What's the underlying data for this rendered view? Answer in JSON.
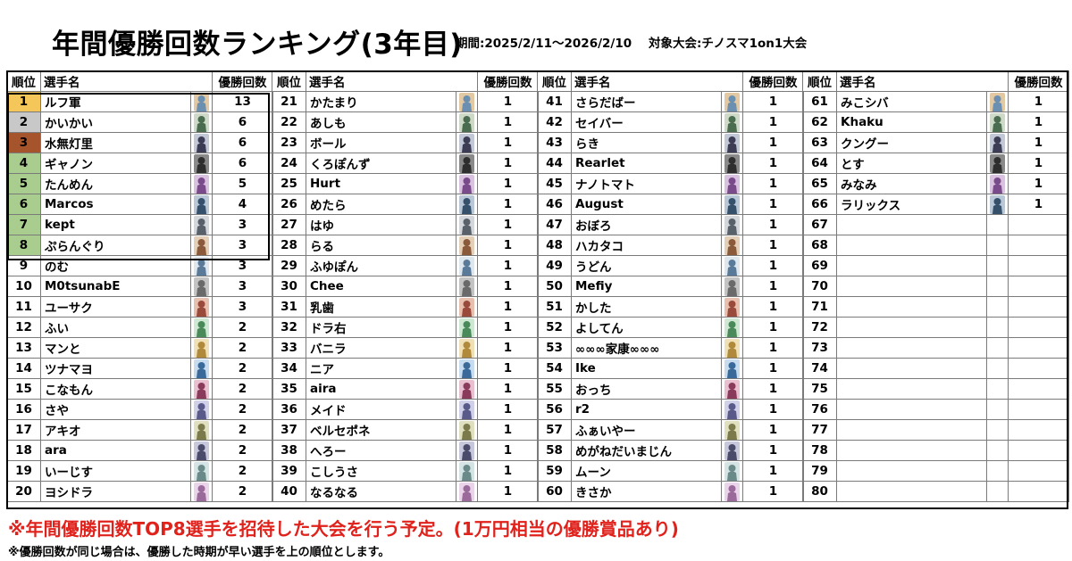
{
  "header": {
    "title": "年間優勝回数ランキング(3年目)",
    "period": "期間:2025/2/11～2026/2/10",
    "target": "対象大会:チノスマ1on1大会"
  },
  "columns": {
    "rank": "順位",
    "name": "選手名",
    "wins": "優勝回数"
  },
  "colors": {
    "gold": "#f5c65a",
    "silver": "#c8c8c8",
    "bronze": "#a6542b",
    "top8": "#a9cc8f"
  },
  "rows": [
    {
      "rank": "1",
      "name": "ルフ軍",
      "wins": "13",
      "icon": "character-icon-a"
    },
    {
      "rank": "2",
      "name": "かいかい",
      "wins": "6",
      "icon": "character-icon-b"
    },
    {
      "rank": "3",
      "name": "水無灯里",
      "wins": "6",
      "icon": "character-icon-c"
    },
    {
      "rank": "4",
      "name": "ギャノン",
      "wins": "6",
      "icon": "character-icon-d"
    },
    {
      "rank": "5",
      "name": "たんめん",
      "wins": "5",
      "icon": "character-icon-e"
    },
    {
      "rank": "6",
      "name": "Marcos",
      "wins": "4",
      "icon": "character-icon-f"
    },
    {
      "rank": "7",
      "name": "kept",
      "wins": "3",
      "icon": "character-icon-g"
    },
    {
      "rank": "8",
      "name": "ぷらんぐり",
      "wins": "3",
      "icon": "character-icon-h"
    },
    {
      "rank": "9",
      "name": "のむ",
      "wins": "3",
      "icon": "character-icon-i"
    },
    {
      "rank": "10",
      "name": "M0tsunabE",
      "wins": "3",
      "icon": "character-icon-j"
    },
    {
      "rank": "11",
      "name": "ユーサク",
      "wins": "3",
      "icon": "character-icon-k"
    },
    {
      "rank": "12",
      "name": "ふい",
      "wins": "2",
      "icon": "character-icon-l"
    },
    {
      "rank": "13",
      "name": "マンと",
      "wins": "2",
      "icon": "character-icon-m"
    },
    {
      "rank": "14",
      "name": "ツナマヨ",
      "wins": "2",
      "icon": "character-icon-n"
    },
    {
      "rank": "15",
      "name": "こなもん",
      "wins": "2",
      "icon": "character-icon-o"
    },
    {
      "rank": "16",
      "name": "さや",
      "wins": "2",
      "icon": "character-icon-p"
    },
    {
      "rank": "17",
      "name": "アキオ",
      "wins": "2",
      "icon": "character-icon-q"
    },
    {
      "rank": "18",
      "name": "ara",
      "wins": "2",
      "icon": "character-icon-r"
    },
    {
      "rank": "19",
      "name": "いーじす",
      "wins": "2",
      "icon": "character-icon-s"
    },
    {
      "rank": "20",
      "name": "ヨシドラ",
      "wins": "2",
      "icon": "character-icon-t"
    },
    {
      "rank": "21",
      "name": "かたまり",
      "wins": "1",
      "icon": "character-icon-a"
    },
    {
      "rank": "22",
      "name": "あしも",
      "wins": "1",
      "icon": "character-icon-b"
    },
    {
      "rank": "23",
      "name": "ボール",
      "wins": "1",
      "icon": "character-icon-c"
    },
    {
      "rank": "24",
      "name": "くろぽんず",
      "wins": "1",
      "icon": "character-icon-d"
    },
    {
      "rank": "25",
      "name": "Hurt",
      "wins": "1",
      "icon": "character-icon-e"
    },
    {
      "rank": "26",
      "name": "めたら",
      "wins": "1",
      "icon": "character-icon-f"
    },
    {
      "rank": "27",
      "name": "はゆ",
      "wins": "1",
      "icon": "character-icon-g"
    },
    {
      "rank": "28",
      "name": "らる",
      "wins": "1",
      "icon": "character-icon-h"
    },
    {
      "rank": "29",
      "name": "ふゆぽん",
      "wins": "1",
      "icon": "character-icon-i"
    },
    {
      "rank": "30",
      "name": "Chee",
      "wins": "1",
      "icon": "character-icon-j"
    },
    {
      "rank": "31",
      "name": "乳歯",
      "wins": "1",
      "icon": "character-icon-k"
    },
    {
      "rank": "32",
      "name": "ドラ右",
      "wins": "1",
      "icon": "character-icon-l"
    },
    {
      "rank": "33",
      "name": "バニラ",
      "wins": "1",
      "icon": "character-icon-m"
    },
    {
      "rank": "34",
      "name": "ニア",
      "wins": "1",
      "icon": "character-icon-n"
    },
    {
      "rank": "35",
      "name": "aira",
      "wins": "1",
      "icon": "character-icon-o"
    },
    {
      "rank": "36",
      "name": "メイド",
      "wins": "1",
      "icon": "character-icon-p"
    },
    {
      "rank": "37",
      "name": "ベルセポネ",
      "wins": "1",
      "icon": "character-icon-q"
    },
    {
      "rank": "38",
      "name": "へろー",
      "wins": "1",
      "icon": "character-icon-r"
    },
    {
      "rank": "39",
      "name": "こしうさ",
      "wins": "1",
      "icon": "character-icon-s"
    },
    {
      "rank": "40",
      "name": "なるなる",
      "wins": "1",
      "icon": "character-icon-t"
    },
    {
      "rank": "41",
      "name": "さらだばー",
      "wins": "1",
      "icon": "character-icon-a"
    },
    {
      "rank": "42",
      "name": "セイバー",
      "wins": "1",
      "icon": "character-icon-b"
    },
    {
      "rank": "43",
      "name": "らき",
      "wins": "1",
      "icon": "character-icon-c"
    },
    {
      "rank": "44",
      "name": "Rearlet",
      "wins": "1",
      "icon": "character-icon-d"
    },
    {
      "rank": "45",
      "name": "ナノトマト",
      "wins": "1",
      "icon": "character-icon-e"
    },
    {
      "rank": "46",
      "name": "August",
      "wins": "1",
      "icon": "character-icon-f"
    },
    {
      "rank": "47",
      "name": "おぼろ",
      "wins": "1",
      "icon": "character-icon-g"
    },
    {
      "rank": "48",
      "name": "ハカタコ",
      "wins": "1",
      "icon": "character-icon-h"
    },
    {
      "rank": "49",
      "name": "うどん",
      "wins": "1",
      "icon": "character-icon-i"
    },
    {
      "rank": "50",
      "name": "Mefiy",
      "wins": "1",
      "icon": "character-icon-j"
    },
    {
      "rank": "51",
      "name": "かした",
      "wins": "1",
      "icon": "character-icon-k"
    },
    {
      "rank": "52",
      "name": "よしてん",
      "wins": "1",
      "icon": "character-icon-l"
    },
    {
      "rank": "53",
      "name": "∞∞∞家康∞∞∞",
      "wins": "1",
      "icon": "character-icon-m"
    },
    {
      "rank": "54",
      "name": "Ike",
      "wins": "1",
      "icon": "character-icon-n"
    },
    {
      "rank": "55",
      "name": "おっち",
      "wins": "1",
      "icon": "character-icon-o"
    },
    {
      "rank": "56",
      "name": "r2",
      "wins": "1",
      "icon": "character-icon-p"
    },
    {
      "rank": "57",
      "name": "ふぁいやー",
      "wins": "1",
      "icon": "character-icon-q"
    },
    {
      "rank": "58",
      "name": "めがねだいまじん",
      "wins": "1",
      "icon": "character-icon-r"
    },
    {
      "rank": "59",
      "name": "ムーン",
      "wins": "1",
      "icon": "character-icon-s"
    },
    {
      "rank": "60",
      "name": "きさか",
      "wins": "1",
      "icon": "character-icon-t"
    },
    {
      "rank": "61",
      "name": "みこシバ",
      "wins": "1",
      "icon": "character-icon-a"
    },
    {
      "rank": "62",
      "name": "Khaku",
      "wins": "1",
      "icon": "character-icon-b"
    },
    {
      "rank": "63",
      "name": "クングー",
      "wins": "1",
      "icon": "character-icon-c"
    },
    {
      "rank": "64",
      "name": "とす",
      "wins": "1",
      "icon": "character-icon-d"
    },
    {
      "rank": "65",
      "name": "みなみ",
      "wins": "1",
      "icon": "character-icon-e"
    },
    {
      "rank": "66",
      "name": "ラリックス",
      "wins": "1",
      "icon": "character-icon-f"
    },
    {
      "rank": "67",
      "name": "",
      "wins": "",
      "icon": ""
    },
    {
      "rank": "68",
      "name": "",
      "wins": "",
      "icon": ""
    },
    {
      "rank": "69",
      "name": "",
      "wins": "",
      "icon": ""
    },
    {
      "rank": "70",
      "name": "",
      "wins": "",
      "icon": ""
    },
    {
      "rank": "71",
      "name": "",
      "wins": "",
      "icon": ""
    },
    {
      "rank": "72",
      "name": "",
      "wins": "",
      "icon": ""
    },
    {
      "rank": "73",
      "name": "",
      "wins": "",
      "icon": ""
    },
    {
      "rank": "74",
      "name": "",
      "wins": "",
      "icon": ""
    },
    {
      "rank": "75",
      "name": "",
      "wins": "",
      "icon": ""
    },
    {
      "rank": "76",
      "name": "",
      "wins": "",
      "icon": ""
    },
    {
      "rank": "77",
      "name": "",
      "wins": "",
      "icon": ""
    },
    {
      "rank": "78",
      "name": "",
      "wins": "",
      "icon": ""
    },
    {
      "rank": "79",
      "name": "",
      "wins": "",
      "icon": ""
    },
    {
      "rank": "80",
      "name": "",
      "wins": "",
      "icon": ""
    }
  ],
  "footer": {
    "notice": "※年間優勝回数TOP8選手を招待した大会を行う予定。(1万円相当の優勝賞品あり)",
    "subnote": "※優勝回数が同じ場合は、優勝した時期が早い選手を上の順位とします。"
  }
}
